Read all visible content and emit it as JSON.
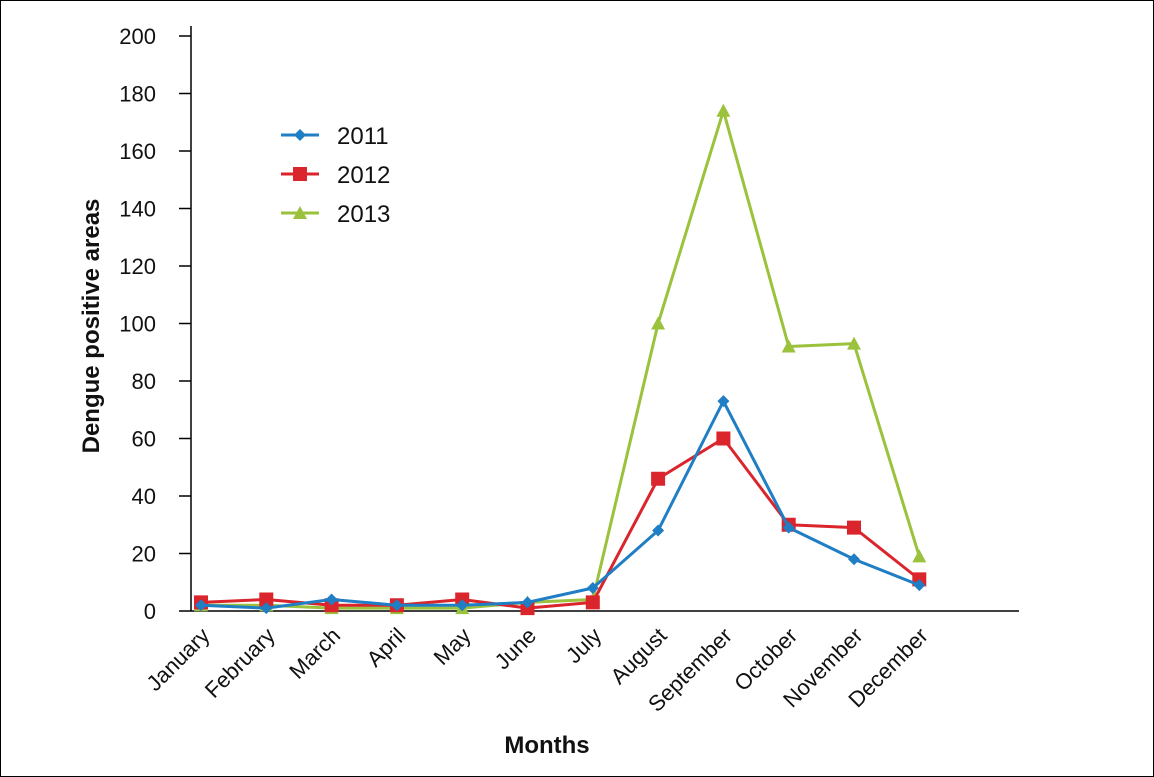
{
  "chart_data": {
    "type": "line",
    "title": "",
    "xlabel": "Months",
    "ylabel": "Dengue positive areas",
    "ylim": [
      0,
      200
    ],
    "yticks": [
      0,
      20,
      40,
      60,
      80,
      100,
      120,
      140,
      160,
      180,
      200
    ],
    "categories": [
      "January",
      "February",
      "March",
      "April",
      "May",
      "June",
      "July",
      "August",
      "September",
      "October",
      "November",
      "December"
    ],
    "grid": false,
    "legend_position": "top-left",
    "series": [
      {
        "name": "2011",
        "color": "#1f7ec4",
        "marker": "diamond",
        "values": [
          2,
          1,
          4,
          2,
          2,
          3,
          8,
          28,
          73,
          29,
          18,
          9
        ]
      },
      {
        "name": "2012",
        "color": "#d9252b",
        "marker": "square",
        "values": [
          3,
          4,
          2,
          2,
          4,
          1,
          3,
          46,
          60,
          30,
          29,
          11
        ]
      },
      {
        "name": "2013",
        "color": "#9bc23c",
        "marker": "triangle",
        "values": [
          2,
          2,
          1,
          1,
          1,
          3,
          4,
          100,
          174,
          92,
          93,
          19
        ]
      }
    ]
  }
}
